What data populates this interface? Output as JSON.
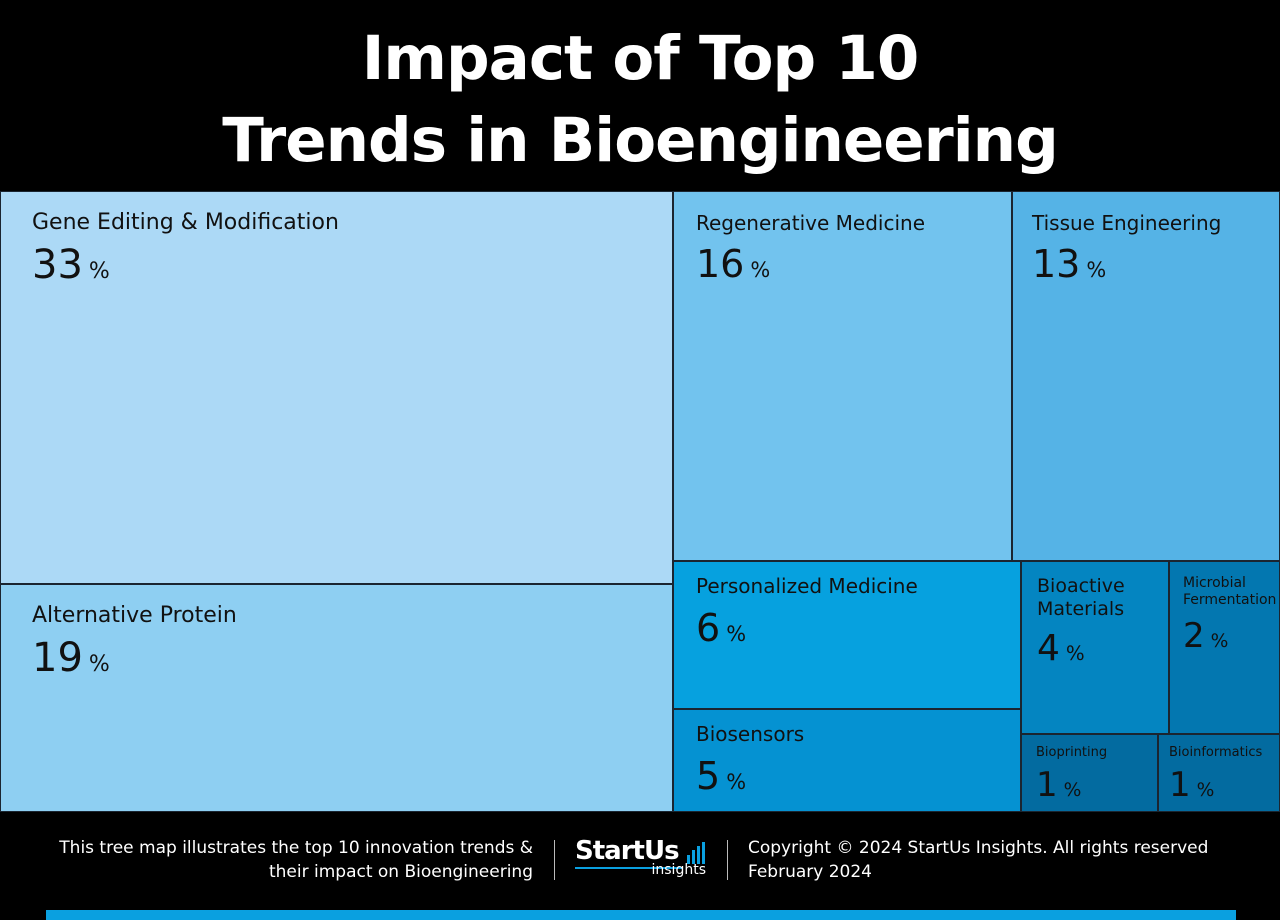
{
  "title": {
    "line1": "Impact of Top 10",
    "line2": "Trends in Bioengineering"
  },
  "chart_data": {
    "type": "treemap",
    "unit": "%",
    "items": [
      {
        "name": "Gene Editing & Modification",
        "value": 33,
        "color": "#acd9f6"
      },
      {
        "name": "Alternative Protein",
        "value": 19,
        "color": "#8ecff2"
      },
      {
        "name": "Regenerative Medicine",
        "value": 16,
        "color": "#72c3ee"
      },
      {
        "name": "Tissue Engineering",
        "value": 13,
        "color": "#55b3e6"
      },
      {
        "name": "Personalized Medicine",
        "value": 6,
        "color": "#06a1df"
      },
      {
        "name": "Biosensors",
        "value": 5,
        "color": "#0592d2"
      },
      {
        "name": "Bioactive Materials",
        "value": 4,
        "color": "#0485c1"
      },
      {
        "name": "Microbial Fermentation",
        "value": 2,
        "color": "#0377b0"
      },
      {
        "name": "Bioprinting",
        "value": 1,
        "color": "#036ba0"
      },
      {
        "name": "Bioinformatics",
        "value": 1,
        "color": "#036ba0"
      }
    ]
  },
  "footer": {
    "note_line1": "This tree map illustrates the top 10 innovation trends &",
    "note_line2": "their impact on Bioengineering",
    "logo_brand": "StartUs",
    "logo_sub": "insights",
    "copyright_line1": "Copyright © 2024 StartUs Insights. All rights reserved",
    "copyright_line2": "February 2024",
    "accent_color": "#0aa0e0"
  }
}
